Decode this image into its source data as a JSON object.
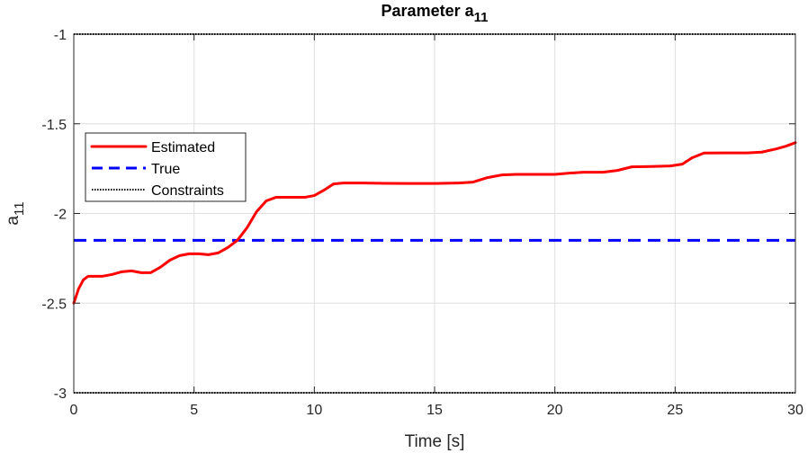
{
  "chart_data": {
    "type": "line",
    "title_main": "Parameter a",
    "title_sub": "11",
    "xlabel": "Time [s]",
    "ylabel_main": "a",
    "ylabel_sub": "11",
    "xlim": [
      0,
      30
    ],
    "ylim": [
      -3,
      -1
    ],
    "xticks": [
      0,
      5,
      10,
      15,
      20,
      25,
      30
    ],
    "xtick_labels": [
      "0",
      "5",
      "10",
      "15",
      "20",
      "25",
      "30"
    ],
    "yticks": [
      -3,
      -2.5,
      -2,
      -1.5,
      -1
    ],
    "ytick_labels": [
      "-3",
      "-2.5",
      "-2",
      "-1.5",
      "-1"
    ],
    "grid": true,
    "legend_position": "upper-left",
    "series": [
      {
        "name": "Estimated",
        "style": "solid",
        "color": "#ff0000",
        "x": [
          0,
          0.2,
          0.4,
          0.6,
          0.9,
          1.2,
          1.6,
          2.0,
          2.4,
          2.8,
          3.2,
          3.6,
          4.0,
          4.4,
          4.8,
          5.2,
          5.6,
          6.0,
          6.4,
          6.8,
          7.2,
          7.6,
          8.0,
          8.4,
          8.8,
          9.2,
          9.6,
          10.0,
          10.4,
          10.8,
          11.2,
          12,
          13,
          14,
          15,
          16,
          16.6,
          17.2,
          17.8,
          18.4,
          19,
          20,
          20.6,
          21.2,
          22,
          22.6,
          23.2,
          24,
          24.8,
          25.3,
          25.7,
          26.2,
          27,
          28,
          28.6,
          29.2,
          29.6,
          30
        ],
        "y": [
          -2.5,
          -2.42,
          -2.37,
          -2.35,
          -2.35,
          -2.35,
          -2.34,
          -2.325,
          -2.32,
          -2.33,
          -2.33,
          -2.3,
          -2.26,
          -2.235,
          -2.225,
          -2.225,
          -2.23,
          -2.22,
          -2.19,
          -2.15,
          -2.08,
          -1.99,
          -1.93,
          -1.91,
          -1.91,
          -1.91,
          -1.91,
          -1.9,
          -1.87,
          -1.835,
          -1.83,
          -1.83,
          -1.832,
          -1.833,
          -1.833,
          -1.83,
          -1.825,
          -1.8,
          -1.785,
          -1.782,
          -1.782,
          -1.782,
          -1.775,
          -1.77,
          -1.77,
          -1.76,
          -1.74,
          -1.738,
          -1.735,
          -1.725,
          -1.69,
          -1.663,
          -1.662,
          -1.662,
          -1.658,
          -1.64,
          -1.625,
          -1.605
        ]
      },
      {
        "name": "True",
        "style": "dashed",
        "color": "#0000ff",
        "x": [
          0,
          30
        ],
        "y": [
          -2.15,
          -2.15
        ]
      },
      {
        "name": "Constraints",
        "style": "dotted",
        "color": "#000000",
        "x": [
          0,
          30
        ],
        "y": [
          -1,
          -1
        ],
        "y_lower": [
          -3,
          -3
        ]
      }
    ]
  }
}
